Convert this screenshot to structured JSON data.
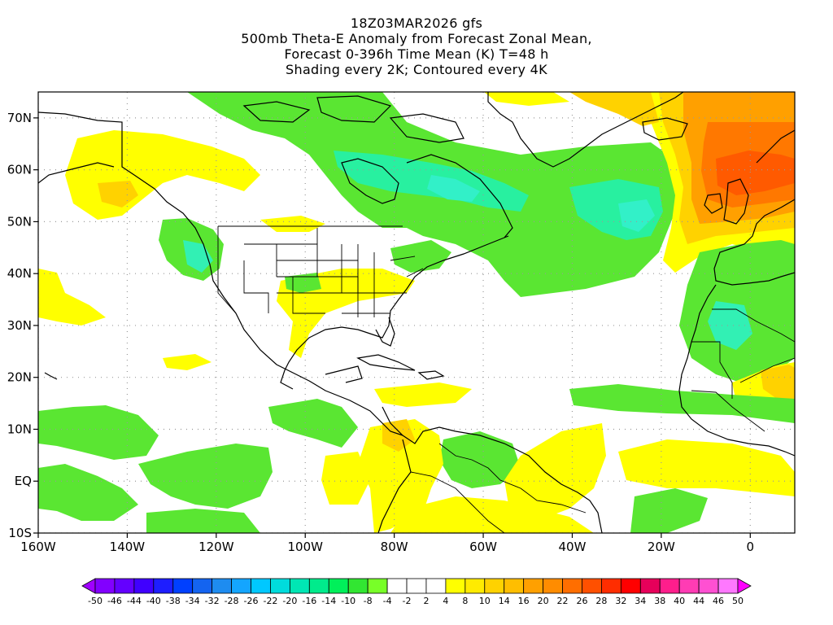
{
  "title": {
    "line1": "18Z03MAR2026 gfs",
    "line2": "500mb Theta-E Anomaly from Forecast Zonal Mean,",
    "line3": "Forecast 0-396h Time Mean (K) T=48 h",
    "line4": "Shading every 2K; Contoured every 4K"
  },
  "map": {
    "lon_range": [
      -160,
      10
    ],
    "lat_range": [
      -10,
      75
    ],
    "lon_ticks": [
      {
        "v": -160,
        "label": "160W"
      },
      {
        "v": -140,
        "label": "140W"
      },
      {
        "v": -120,
        "label": "120W"
      },
      {
        "v": -100,
        "label": "100W"
      },
      {
        "v": -80,
        "label": "80W"
      },
      {
        "v": -60,
        "label": "60W"
      },
      {
        "v": -40,
        "label": "40W"
      },
      {
        "v": -20,
        "label": "20W"
      },
      {
        "v": 0,
        "label": "0"
      }
    ],
    "lat_ticks": [
      {
        "v": -10,
        "label": "10S"
      },
      {
        "v": 0,
        "label": "EQ"
      },
      {
        "v": 10,
        "label": "10N"
      },
      {
        "v": 20,
        "label": "20N"
      },
      {
        "v": 30,
        "label": "30N"
      },
      {
        "v": 40,
        "label": "40N"
      },
      {
        "v": 50,
        "label": "50N"
      },
      {
        "v": 60,
        "label": "60N"
      },
      {
        "v": 70,
        "label": "70N"
      }
    ],
    "grid": true
  },
  "colorbar": {
    "labels": [
      "-50",
      "-46",
      "-44",
      "-40",
      "-38",
      "-34",
      "-32",
      "-28",
      "-26",
      "-22",
      "-20",
      "-16",
      "-14",
      "-10",
      "-8",
      "-4",
      "-2",
      "2",
      "4",
      "8",
      "10",
      "14",
      "16",
      "20",
      "22",
      "26",
      "28",
      "32",
      "34",
      "38",
      "40",
      "44",
      "46",
      "50"
    ],
    "colors": [
      "#a000ff",
      "#8200ff",
      "#6400ff",
      "#4000ff",
      "#1e1eff",
      "#0040ff",
      "#1464f0",
      "#1e8cf0",
      "#14a5ff",
      "#00c8ff",
      "#00dcdc",
      "#00e6b4",
      "#00eb8c",
      "#00f05a",
      "#32e632",
      "#78ff28",
      "#ffffff",
      "#ffffff",
      "#ffffff",
      "#ffff00",
      "#ffeb00",
      "#ffd200",
      "#ffbe00",
      "#ffa000",
      "#ff8c00",
      "#ff6e00",
      "#ff5000",
      "#ff2d00",
      "#ff0000",
      "#e6005a",
      "#ff1e8c",
      "#ff3cb4",
      "#ff50d2",
      "#ff78ff",
      "#ff00ff"
    ]
  },
  "colors": {
    "green": "#5ae632",
    "light_green": "#28f05a",
    "teal": "#32f0b4",
    "yellow": "#ffff00",
    "gold": "#ffd200",
    "orange": "#ffa000",
    "dark_orange": "#ff7800",
    "red_orange": "#ff5a00",
    "coast": "#000000"
  }
}
